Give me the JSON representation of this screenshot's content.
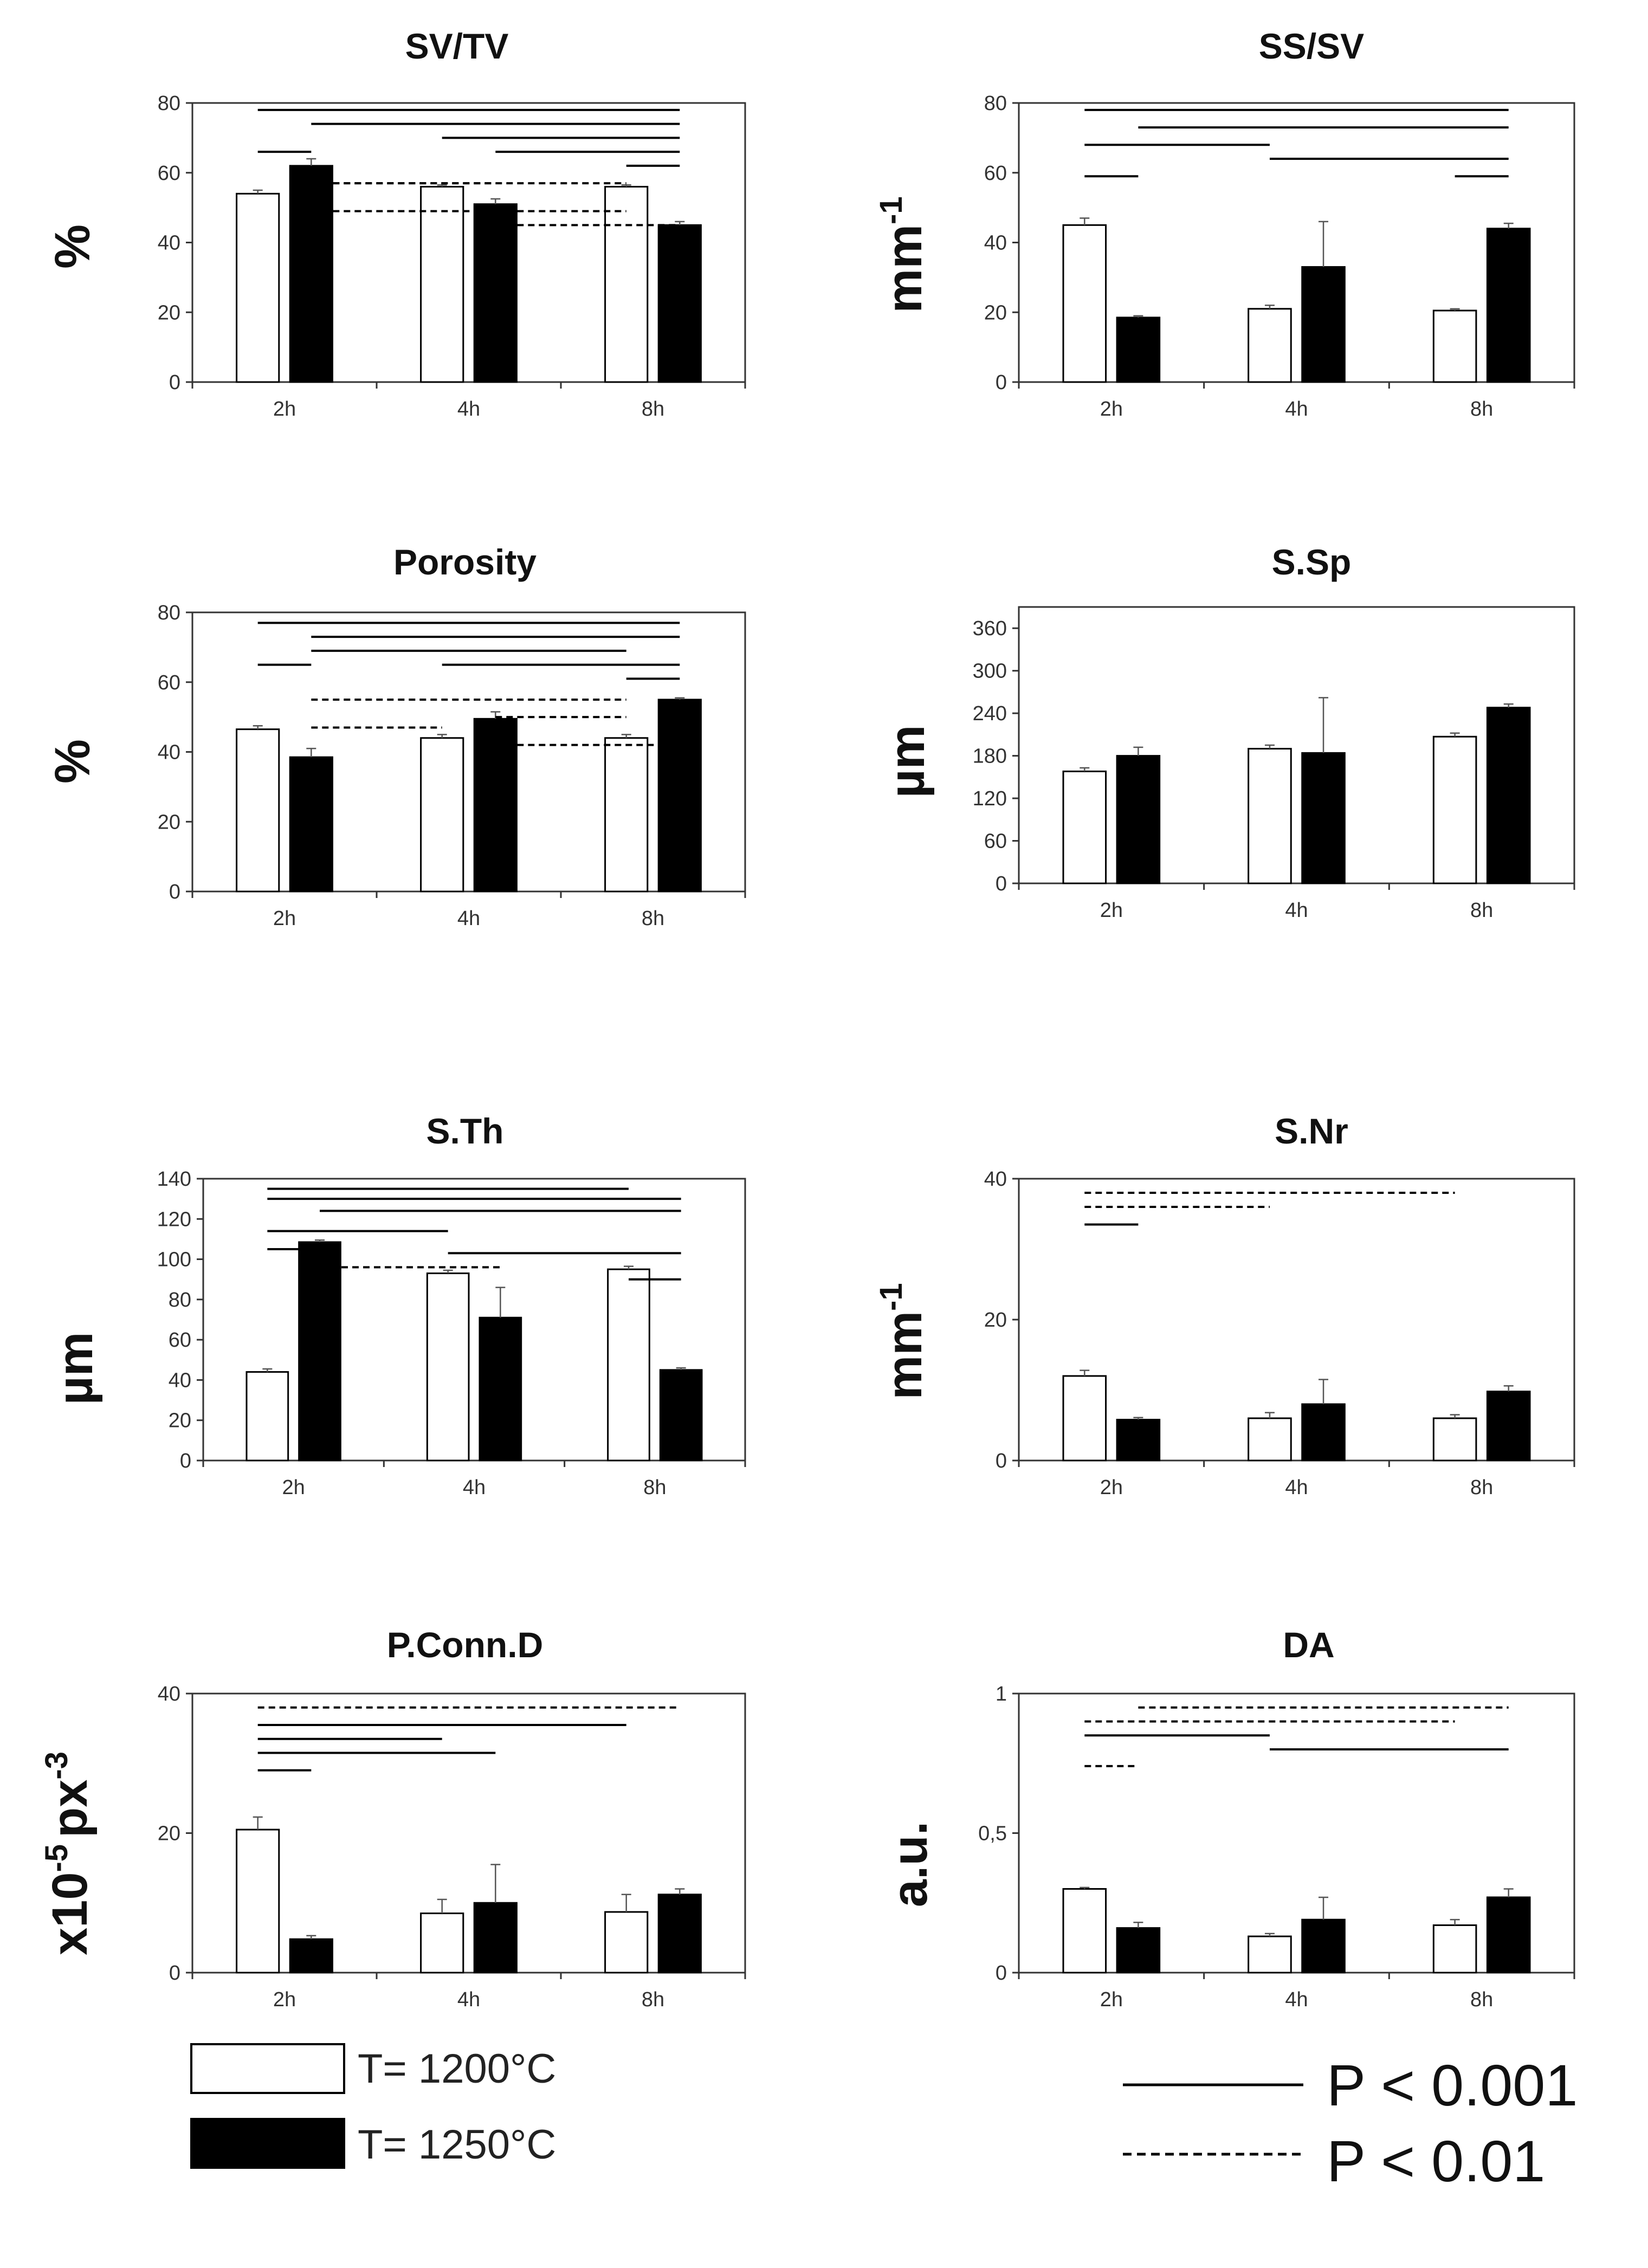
{
  "chart_data": [
    {
      "type": "bar",
      "title": "SV/TV",
      "ylabel": "%",
      "ylim": [
        0,
        80
      ],
      "yticks": [
        0,
        20,
        40,
        60,
        80
      ],
      "categories": [
        "2h",
        "4h",
        "8h"
      ],
      "series": [
        {
          "name": "T= 1200°C",
          "values": [
            54,
            56,
            56
          ],
          "errors": [
            1,
            0.5,
            0.5
          ]
        },
        {
          "name": "T= 1250°C",
          "values": [
            62,
            51,
            45
          ],
          "errors": [
            2,
            1.5,
            1
          ]
        }
      ],
      "significance": [
        {
          "p": "P < 0.001",
          "from": "2h-1200°C",
          "to": "8h-1250°C",
          "y": 78
        },
        {
          "p": "P < 0.001",
          "from": "2h-1250°C",
          "to": "8h-1250°C",
          "y": 74
        },
        {
          "p": "P < 0.001",
          "from": "4h-1200°C",
          "to": "8h-1250°C",
          "y": 70
        },
        {
          "p": "P < 0.001",
          "from": "4h-1250°C",
          "to": "8h-1250°C",
          "y": 66
        },
        {
          "p": "P < 0.001",
          "from": "8h-1200°C",
          "to": "8h-1250°C",
          "y": 62
        },
        {
          "p": "P < 0.001",
          "from": "2h-1200°C",
          "to": "2h-1250°C",
          "y": 66
        },
        {
          "p": "P < 0.01",
          "from": "2h-1250°C",
          "to": "4h-1250°C",
          "y": 57
        },
        {
          "p": "P < 0.01",
          "from": "2h-1250°C",
          "to": "8h-1200°C",
          "y": 57
        },
        {
          "p": "P < 0.01",
          "from": "2h-1250°C",
          "to": "8h-1200°C",
          "y": 49
        },
        {
          "p": "P < 0.01",
          "from": "4h-1250°C",
          "to": "8h-1250°C",
          "y": 45
        }
      ]
    },
    {
      "type": "bar",
      "title": "SS/SV",
      "ylabel": "mm",
      "ylabel_sup": "-1",
      "ylim": [
        0,
        80
      ],
      "yticks": [
        0,
        20,
        40,
        60,
        80
      ],
      "categories": [
        "2h",
        "4h",
        "8h"
      ],
      "series": [
        {
          "name": "T= 1200°C",
          "values": [
            45,
            21,
            20.5
          ],
          "errors": [
            2,
            1,
            0.5
          ]
        },
        {
          "name": "T= 1250°C",
          "values": [
            18.5,
            33,
            44
          ],
          "errors": [
            0.5,
            13,
            1.5
          ]
        }
      ],
      "significance": [
        {
          "p": "P < 0.001",
          "from": "2h-1200°C",
          "to": "8h-1250°C",
          "y": 78
        },
        {
          "p": "P < 0.001",
          "from": "2h-1250°C",
          "to": "8h-1250°C",
          "y": 73
        },
        {
          "p": "P < 0.001",
          "from": "2h-1200°C",
          "to": "4h-1200°C",
          "y": 68
        },
        {
          "p": "P < 0.001",
          "from": "4h-1200°C",
          "to": "8h-1250°C",
          "y": 64
        },
        {
          "p": "P < 0.001",
          "from": "2h-1200°C",
          "to": "2h-1250°C",
          "y": 59
        },
        {
          "p": "P < 0.001",
          "from": "8h-1200°C",
          "to": "8h-1250°C",
          "y": 59
        }
      ]
    },
    {
      "type": "bar",
      "title": "Porosity",
      "ylabel": "%",
      "ylim": [
        0,
        80
      ],
      "yticks": [
        0,
        20,
        40,
        60,
        80
      ],
      "categories": [
        "2h",
        "4h",
        "8h"
      ],
      "series": [
        {
          "name": "T= 1200°C",
          "values": [
            46.5,
            44,
            44
          ],
          "errors": [
            1,
            1,
            1
          ]
        },
        {
          "name": "T= 1250°C",
          "values": [
            38.5,
            49.5,
            55
          ],
          "errors": [
            2.5,
            2,
            0.5
          ]
        }
      ],
      "significance": [
        {
          "p": "P < 0.001",
          "from": "2h-1200°C",
          "to": "8h-1250°C",
          "y": 77
        },
        {
          "p": "P < 0.001",
          "from": "2h-1250°C",
          "to": "8h-1250°C",
          "y": 73
        },
        {
          "p": "P < 0.001",
          "from": "2h-1250°C",
          "to": "8h-1200°C",
          "y": 69
        },
        {
          "p": "P < 0.001",
          "from": "4h-1200°C",
          "to": "8h-1250°C",
          "y": 65
        },
        {
          "p": "P < 0.001",
          "from": "2h-1200°C",
          "to": "2h-1250°C",
          "y": 65
        },
        {
          "p": "P < 0.001",
          "from": "8h-1200°C",
          "to": "8h-1250°C",
          "y": 61
        },
        {
          "p": "P < 0.01",
          "from": "2h-1250°C",
          "to": "8h-1200°C",
          "y": 55
        },
        {
          "p": "P < 0.01",
          "from": "4h-1250°C",
          "to": "8h-1200°C",
          "y": 50
        },
        {
          "p": "P < 0.01",
          "from": "2h-1250°C",
          "to": "4h-1200°C",
          "y": 47
        },
        {
          "p": "P < 0.01",
          "from": "4h-1250°C",
          "to": "8h-1250°C",
          "y": 42
        }
      ]
    },
    {
      "type": "bar",
      "title": "S.Sp",
      "ylabel": "µm",
      "ylim": [
        0,
        390
      ],
      "yticks": [
        0,
        60,
        120,
        180,
        240,
        300,
        360
      ],
      "categories": [
        "2h",
        "4h",
        "8h"
      ],
      "series": [
        {
          "name": "T= 1200°C",
          "values": [
            158,
            190,
            207
          ],
          "errors": [
            5,
            5,
            5
          ]
        },
        {
          "name": "T= 1250°C",
          "values": [
            180,
            184,
            248
          ],
          "errors": [
            12,
            78,
            5
          ]
        }
      ],
      "significance": []
    },
    {
      "type": "bar",
      "title": "S.Th",
      "ylabel": "µm",
      "ylim": [
        0,
        140
      ],
      "yticks": [
        0,
        20,
        40,
        60,
        80,
        100,
        120,
        140
      ],
      "categories": [
        "2h",
        "4h",
        "8h"
      ],
      "series": [
        {
          "name": "T= 1200°C",
          "values": [
            44,
            93,
            95
          ],
          "errors": [
            1.5,
            1.5,
            1.5
          ]
        },
        {
          "name": "T= 1250°C",
          "values": [
            108.5,
            71,
            45
          ],
          "errors": [
            1,
            15,
            1
          ]
        }
      ],
      "significance": [
        {
          "p": "P < 0.001",
          "from": "2h-1200°C",
          "to": "8h-1200°C",
          "y": 135
        },
        {
          "p": "P < 0.001",
          "from": "2h-1200°C",
          "to": "8h-1250°C",
          "y": 130
        },
        {
          "p": "P < 0.001",
          "from": "2h-1250°C",
          "to": "8h-1250°C",
          "y": 124
        },
        {
          "p": "P < 0.001",
          "from": "2h-1200°C",
          "to": "4h-1200°C",
          "y": 114
        },
        {
          "p": "P < 0.001",
          "from": "2h-1200°C",
          "to": "2h-1250°C",
          "y": 105
        },
        {
          "p": "P < 0.001",
          "from": "4h-1200°C",
          "to": "8h-1250°C",
          "y": 103
        },
        {
          "p": "P < 0.001",
          "from": "8h-1200°C",
          "to": "8h-1250°C",
          "y": 90
        },
        {
          "p": "P < 0.01",
          "from": "2h-1250°C",
          "to": "4h-1250°C",
          "y": 96
        }
      ]
    },
    {
      "type": "bar",
      "title": "S.Nr",
      "ylabel": "mm",
      "ylabel_sup": "-1",
      "ylim": [
        0,
        40
      ],
      "yticks": [
        0,
        20,
        40
      ],
      "categories": [
        "2h",
        "4h",
        "8h"
      ],
      "series": [
        {
          "name": "T= 1200°C",
          "values": [
            12,
            6,
            6
          ],
          "errors": [
            0.8,
            0.8,
            0.5
          ]
        },
        {
          "name": "T= 1250°C",
          "values": [
            5.8,
            8,
            9.8
          ],
          "errors": [
            0.3,
            3.5,
            0.8
          ]
        }
      ],
      "significance": [
        {
          "p": "P < 0.01",
          "from": "2h-1200°C",
          "to": "8h-1200°C",
          "y": 38
        },
        {
          "p": "P < 0.01",
          "from": "2h-1200°C",
          "to": "4h-1200°C",
          "y": 36
        },
        {
          "p": "P < 0.001",
          "from": "2h-1200°C",
          "to": "2h-1250°C",
          "y": 33.5
        }
      ]
    },
    {
      "type": "bar",
      "title": "P.Conn.D",
      "ylabel": "x10",
      "ylabel_sup": "-5",
      "ylabel_rest": "px",
      "ylabel_sup2": "-3",
      "ylim": [
        0,
        40
      ],
      "yticks": [
        0,
        20,
        40
      ],
      "categories": [
        "2h",
        "4h",
        "8h"
      ],
      "series": [
        {
          "name": "T= 1200°C",
          "values": [
            20.5,
            8.5,
            8.7
          ],
          "errors": [
            1.8,
            2,
            2.5
          ]
        },
        {
          "name": "T= 1250°C",
          "values": [
            4.8,
            10,
            11.2
          ],
          "errors": [
            0.5,
            5.5,
            0.8
          ]
        }
      ],
      "significance": [
        {
          "p": "P < 0.01",
          "from": "2h-1200°C",
          "to": "8h-1250°C",
          "y": 38
        },
        {
          "p": "P < 0.001",
          "from": "2h-1200°C",
          "to": "8h-1200°C",
          "y": 35.5
        },
        {
          "p": "P < 0.001",
          "from": "2h-1200°C",
          "to": "4h-1200°C",
          "y": 33.5
        },
        {
          "p": "P < 0.001",
          "from": "2h-1200°C",
          "to": "4h-1250°C",
          "y": 31.5
        },
        {
          "p": "P < 0.001",
          "from": "2h-1200°C",
          "to": "2h-1250°C",
          "y": 29
        }
      ]
    },
    {
      "type": "bar",
      "title": "DA",
      "ylabel": "a.u.",
      "ylim": [
        0,
        1
      ],
      "yticks": [
        0,
        0.5,
        1
      ],
      "yticklabels": [
        "0",
        "0,5",
        "1"
      ],
      "categories": [
        "2h",
        "4h",
        "8h"
      ],
      "series": [
        {
          "name": "T= 1200°C",
          "values": [
            0.3,
            0.13,
            0.17
          ],
          "errors": [
            0.005,
            0.01,
            0.02
          ]
        },
        {
          "name": "T= 1250°C",
          "values": [
            0.16,
            0.19,
            0.27
          ],
          "errors": [
            0.02,
            0.08,
            0.03
          ]
        }
      ],
      "significance": [
        {
          "p": "P < 0.01",
          "from": "2h-1250°C",
          "to": "8h-1250°C",
          "y": 0.95
        },
        {
          "p": "P < 0.01",
          "from": "2h-1200°C",
          "to": "8h-1200°C",
          "y": 0.9
        },
        {
          "p": "P < 0.001",
          "from": "2h-1200°C",
          "to": "4h-1200°C",
          "y": 0.85
        },
        {
          "p": "P < 0.001",
          "from": "4h-1200°C",
          "to": "8h-1250°C",
          "y": 0.8
        },
        {
          "p": "P < 0.01",
          "from": "2h-1200°C",
          "to": "2h-1250°C",
          "y": 0.74
        }
      ]
    }
  ],
  "legend": {
    "bars": [
      {
        "label": "T= 1200°C",
        "fill": "#ffffff"
      },
      {
        "label": "T= 1250°C",
        "fill": "#000000"
      }
    ],
    "lines": [
      {
        "label": "P < 0.001",
        "style": "solid"
      },
      {
        "label": "P < 0.01",
        "style": "dashed"
      }
    ]
  },
  "colors": {
    "bar_1200": "#ffffff",
    "bar_1250": "#000000",
    "axis": "#333333"
  }
}
